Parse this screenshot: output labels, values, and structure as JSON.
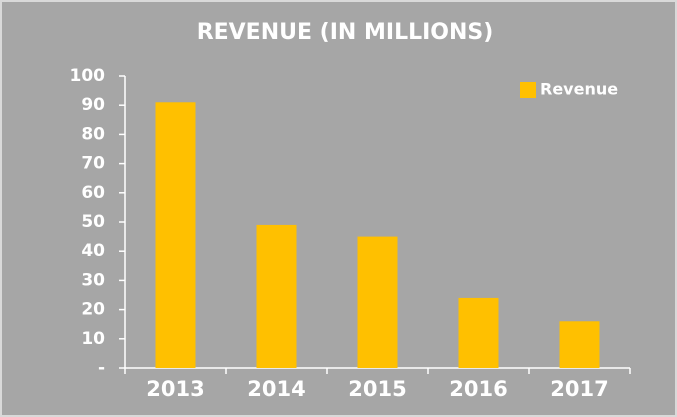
{
  "chart_data": {
    "type": "bar",
    "title": "REVENUE (IN MILLIONS)",
    "categories": [
      "2013",
      "2014",
      "2015",
      "2016",
      "2017"
    ],
    "series": [
      {
        "name": "Revenue",
        "color": "#ffc000",
        "values": [
          91,
          49,
          45,
          24,
          16
        ]
      }
    ],
    "ylim": [
      0,
      100
    ],
    "yticks": [
      {
        "value": 0,
        "label": "-"
      },
      10,
      20,
      30,
      40,
      50,
      60,
      70,
      80,
      90,
      100
    ],
    "grid": false,
    "legend": "top-right"
  }
}
